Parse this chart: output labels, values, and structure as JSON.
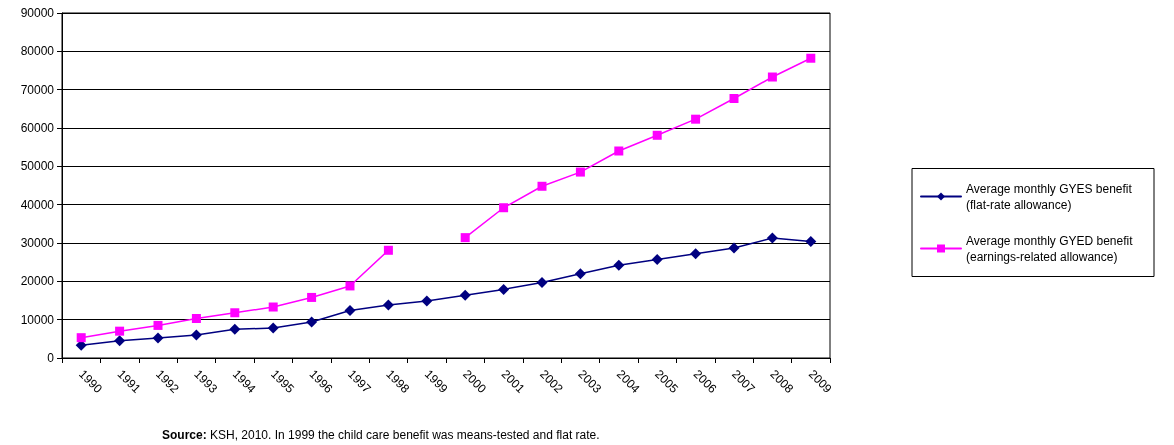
{
  "chart_data": {
    "type": "line",
    "categories": [
      "1990",
      "1991",
      "1992",
      "1993",
      "1994",
      "1995",
      "1996",
      "1997",
      "1998",
      "1999",
      "2000",
      "2001",
      "2002",
      "2003",
      "2004",
      "2005",
      "2006",
      "2007",
      "2008",
      "2009"
    ],
    "series": [
      {
        "name": "Average monthly GYES benefit (flat-rate allowance)",
        "color": "#000080",
        "marker": "diamond",
        "values": [
          3300,
          4500,
          5200,
          6000,
          7500,
          7800,
          9400,
          12400,
          13800,
          14900,
          16400,
          17900,
          19700,
          22000,
          24200,
          25700,
          27200,
          28700,
          31300,
          30400
        ]
      },
      {
        "name": "Average monthly GYED benefit (earnings-related allowance)",
        "color": "#ff00ff",
        "marker": "square",
        "values": [
          5300,
          7000,
          8500,
          10300,
          11800,
          13300,
          15800,
          18800,
          28100,
          null,
          31400,
          39200,
          44800,
          48500,
          54000,
          58100,
          62300,
          67700,
          73300,
          78200
        ]
      }
    ],
    "ylim": [
      0,
      90000
    ],
    "yticks": [
      0,
      10000,
      20000,
      30000,
      40000,
      50000,
      60000,
      70000,
      80000,
      90000
    ],
    "grid": "y",
    "legend": "right",
    "line_style": "solid",
    "annotations": [
      "Source: KSH, 2010. In 1999 the child care benefit was means-tested and flat rate."
    ]
  }
}
